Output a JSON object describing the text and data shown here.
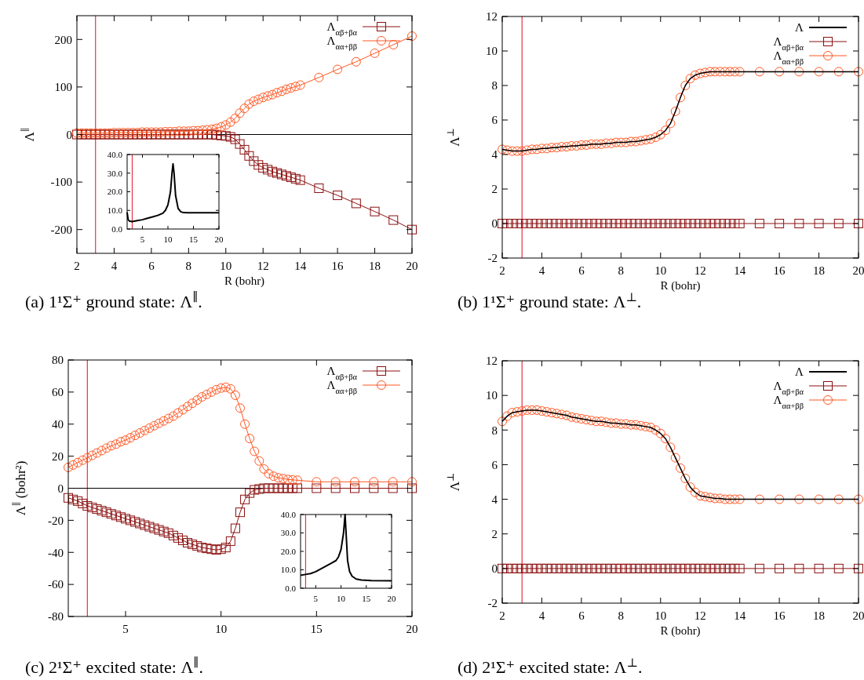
{
  "chart_data": [
    {
      "type": "line",
      "title": "(a) 1¹Σ⁺ ground state: Λ$^{∥}$.",
      "xlabel": "R (bohr)",
      "ylabel": "Λ$^{∥}$",
      "xlim": [
        2,
        20
      ],
      "xticks": [
        2,
        4,
        6,
        8,
        10,
        12,
        14,
        16,
        18,
        20
      ],
      "ylim": [
        -250,
        250
      ],
      "yticks": [
        -200,
        -100,
        0,
        100,
        200
      ],
      "legend": "top right",
      "grid": false,
      "ref_lines": [
        {
          "axis": "x",
          "value": 3,
          "color": "#e8304a"
        },
        {
          "axis": "y",
          "value": 0,
          "color": "#000000"
        }
      ],
      "x": [
        2,
        2.25,
        2.5,
        2.75,
        3,
        3.25,
        3.5,
        3.75,
        4,
        4.25,
        4.5,
        4.75,
        5,
        5.25,
        5.5,
        5.75,
        6,
        6.25,
        6.5,
        6.75,
        7,
        7.25,
        7.5,
        7.75,
        8,
        8.25,
        8.5,
        8.75,
        9,
        9.25,
        9.5,
        9.75,
        10,
        10.25,
        10.5,
        10.75,
        11,
        11.25,
        11.5,
        11.75,
        12,
        12.25,
        12.5,
        12.75,
        13,
        13.25,
        13.5,
        13.75,
        14,
        15,
        16,
        17,
        18,
        19,
        20
      ],
      "series": [
        {
          "name": "Λ$_{αβ+βα}$",
          "color": "#8b1010",
          "marker": "square",
          "values": [
            0,
            0,
            0,
            0,
            0,
            0,
            0,
            0,
            0,
            0,
            0,
            0,
            0,
            0,
            0,
            0,
            0,
            0,
            0,
            0,
            0,
            0,
            0,
            0,
            0,
            0,
            0,
            0,
            0,
            0,
            -1,
            -2,
            -3,
            -5,
            -10,
            -20,
            -32,
            -45,
            -56,
            -64,
            -70,
            -74,
            -78,
            -81,
            -84,
            -87,
            -90,
            -93,
            -96,
            -113,
            -128,
            -145,
            -162,
            -180,
            -200
          ]
        },
        {
          "name": "Λ$_{αα+ββ}$",
          "color": "#ff5722",
          "marker": "circle",
          "values": [
            3,
            3,
            3,
            3,
            3,
            3,
            3,
            3,
            4,
            4,
            4,
            4,
            4,
            4,
            5,
            5,
            5,
            5,
            5,
            6,
            6,
            6,
            7,
            7,
            7,
            8,
            8,
            9,
            10,
            11,
            13,
            16,
            20,
            26,
            34,
            45,
            55,
            64,
            70,
            74,
            78,
            81,
            84,
            88,
            91,
            95,
            98,
            101,
            104,
            120,
            137,
            153,
            171,
            189,
            207
          ]
        }
      ]
    },
    {
      "type": "line",
      "xlim": [
        2,
        20
      ],
      "xticks": [
        5,
        10,
        15,
        20
      ],
      "ylim": [
        0,
        40
      ],
      "yticks": [
        {
          "value": 0,
          "label": "0.0"
        },
        {
          "value": 10,
          "label": "10.0"
        },
        {
          "value": 20,
          "label": "20.0"
        },
        {
          "value": 30,
          "label": "30.0"
        },
        {
          "value": 40,
          "label": "40.0"
        }
      ],
      "ref_lines": [
        {
          "axis": "x",
          "value": 3,
          "color": "#e8304a"
        }
      ],
      "series": [
        {
          "color": "#000000",
          "marker": "none",
          "x": [
            2,
            2.2,
            2.5,
            3,
            4,
            5,
            6,
            7,
            8,
            9,
            9.5,
            10,
            10.5,
            10.8,
            11,
            11.2,
            11.5,
            12,
            12.5,
            13,
            14,
            16,
            18,
            20
          ],
          "values": [
            9,
            5,
            4.2,
            4,
            4.5,
            5,
            5.8,
            6.5,
            7.3,
            8.5,
            10,
            13,
            20,
            30,
            35,
            30,
            18,
            11,
            9.3,
            8.8,
            8.7,
            8.7,
            8.7,
            8.7
          ]
        }
      ]
    },
    {
      "type": "line",
      "title": "(b) 1¹Σ⁺ ground state: Λ$^{⊥}$.",
      "xlabel": "R (bohr)",
      "ylabel": "Λ$^{⊥}$",
      "xlim": [
        2,
        20
      ],
      "xticks": [
        2,
        4,
        6,
        8,
        10,
        12,
        14,
        16,
        18,
        20
      ],
      "ylim": [
        -2,
        12
      ],
      "yticks": [
        -2,
        0,
        2,
        4,
        6,
        8,
        10,
        12
      ],
      "legend": "top right",
      "grid": false,
      "ref_lines": [
        {
          "axis": "x",
          "value": 3,
          "color": "#e8304a"
        }
      ],
      "x": [
        2,
        2.25,
        2.5,
        2.75,
        3,
        3.25,
        3.5,
        3.75,
        4,
        4.25,
        4.5,
        4.75,
        5,
        5.25,
        5.5,
        5.75,
        6,
        6.25,
        6.5,
        6.75,
        7,
        7.25,
        7.5,
        7.75,
        8,
        8.25,
        8.5,
        8.75,
        9,
        9.25,
        9.5,
        9.75,
        10,
        10.25,
        10.5,
        10.75,
        11,
        11.25,
        11.5,
        11.75,
        12,
        12.25,
        12.5,
        12.75,
        13,
        13.25,
        13.5,
        13.75,
        14,
        15,
        16,
        17,
        18,
        19,
        20
      ],
      "series": [
        {
          "name": "Λ",
          "color": "#000000",
          "marker": "none",
          "values": [
            4.3,
            4.25,
            4.2,
            4.2,
            4.2,
            4.25,
            4.3,
            4.3,
            4.35,
            4.35,
            4.4,
            4.4,
            4.45,
            4.45,
            4.5,
            4.5,
            4.55,
            4.55,
            4.6,
            4.6,
            4.6,
            4.65,
            4.65,
            4.7,
            4.7,
            4.7,
            4.75,
            4.75,
            4.8,
            4.85,
            4.9,
            5.0,
            5.15,
            5.4,
            5.8,
            6.5,
            7.3,
            8.0,
            8.4,
            8.6,
            8.7,
            8.75,
            8.8,
            8.8,
            8.8,
            8.8,
            8.8,
            8.8,
            8.8,
            8.8,
            8.8,
            8.8,
            8.8,
            8.8,
            8.8
          ]
        },
        {
          "name": "Λ$_{αβ+βα}$",
          "color": "#8b1010",
          "marker": "square",
          "values": [
            0,
            0,
            0,
            0,
            0,
            0,
            0,
            0,
            0,
            0,
            0,
            0,
            0,
            0,
            0,
            0,
            0,
            0,
            0,
            0,
            0,
            0,
            0,
            0,
            0,
            0,
            0,
            0,
            0,
            0,
            0,
            0,
            0,
            0,
            0,
            0,
            0,
            0,
            0,
            0,
            0,
            0,
            0,
            0,
            0,
            0,
            0,
            0,
            0,
            0,
            0,
            0,
            0,
            0,
            0
          ]
        },
        {
          "name": "Λ$_{αα+ββ}$",
          "color": "#ff5722",
          "marker": "circle",
          "values": [
            4.3,
            4.25,
            4.2,
            4.2,
            4.2,
            4.25,
            4.3,
            4.3,
            4.35,
            4.35,
            4.4,
            4.4,
            4.45,
            4.45,
            4.5,
            4.5,
            4.55,
            4.55,
            4.6,
            4.6,
            4.6,
            4.65,
            4.65,
            4.7,
            4.7,
            4.7,
            4.75,
            4.75,
            4.8,
            4.85,
            4.9,
            5.0,
            5.15,
            5.4,
            5.8,
            6.5,
            7.3,
            8.0,
            8.4,
            8.6,
            8.7,
            8.75,
            8.8,
            8.8,
            8.8,
            8.8,
            8.8,
            8.8,
            8.8,
            8.8,
            8.8,
            8.8,
            8.8,
            8.8,
            8.8
          ]
        }
      ]
    },
    {
      "type": "line",
      "title": "(c) 2¹Σ⁺ excited state: Λ$^{∥}$.",
      "ylabel": "Λ$^{∥}$ (bohr²)",
      "xlim": [
        2,
        20
      ],
      "xticks": [
        5,
        10,
        15,
        20
      ],
      "ylim": [
        -80,
        80
      ],
      "yticks": [
        -80,
        -60,
        -40,
        -20,
        0,
        20,
        40,
        60,
        80
      ],
      "legend": "top right",
      "grid": false,
      "ref_lines": [
        {
          "axis": "x",
          "value": 3,
          "color": "#e8304a"
        },
        {
          "axis": "y",
          "value": 0,
          "color": "#000000"
        }
      ],
      "x": [
        2,
        2.25,
        2.5,
        2.75,
        3,
        3.25,
        3.5,
        3.75,
        4,
        4.25,
        4.5,
        4.75,
        5,
        5.25,
        5.5,
        5.75,
        6,
        6.25,
        6.5,
        6.75,
        7,
        7.25,
        7.5,
        7.75,
        8,
        8.25,
        8.5,
        8.75,
        9,
        9.25,
        9.5,
        9.75,
        10,
        10.25,
        10.5,
        10.75,
        11,
        11.25,
        11.5,
        11.75,
        12,
        12.25,
        12.5,
        12.75,
        13,
        13.25,
        13.5,
        13.75,
        14,
        15,
        16,
        17,
        18,
        19,
        20
      ],
      "series": [
        {
          "name": "Λ$_{αβ+βα}$",
          "color": "#8b1010",
          "marker": "square",
          "values": [
            -6,
            -7,
            -8,
            -9.5,
            -11,
            -12,
            -13,
            -14,
            -15,
            -16,
            -17,
            -18,
            -19,
            -20,
            -21,
            -22,
            -23,
            -24,
            -25,
            -26,
            -27,
            -28,
            -29.5,
            -31,
            -32.5,
            -34,
            -35,
            -36,
            -37,
            -37.5,
            -38,
            -38.5,
            -38,
            -37,
            -33,
            -25,
            -15,
            -7,
            -3,
            -1,
            -0.5,
            0,
            0,
            0,
            0,
            0,
            0,
            0,
            0,
            0,
            0,
            0,
            0,
            0,
            0
          ]
        },
        {
          "name": "Λ$_{αα+ββ}$",
          "color": "#ff5722",
          "marker": "circle",
          "values": [
            13,
            14.5,
            16,
            17.5,
            19,
            20.5,
            22,
            23.5,
            25,
            26.5,
            27.5,
            29,
            30,
            31.5,
            33,
            34.5,
            36,
            37.5,
            39,
            40.5,
            42,
            43.5,
            45,
            47,
            49,
            51,
            53,
            55,
            57,
            58.5,
            60,
            61.5,
            62.5,
            63,
            62,
            58,
            50,
            40,
            31,
            23,
            17,
            12,
            9,
            7.5,
            6.5,
            6,
            5.5,
            5.2,
            5,
            4,
            4,
            4,
            4,
            4,
            4
          ]
        }
      ]
    },
    {
      "type": "line",
      "xlim": [
        2,
        20
      ],
      "xticks": [
        5,
        10,
        15,
        20
      ],
      "ylim": [
        0,
        40
      ],
      "yticks": [
        {
          "value": 0,
          "label": "0.0"
        },
        {
          "value": 10,
          "label": "10.0"
        },
        {
          "value": 20,
          "label": "20.0"
        },
        {
          "value": 30,
          "label": "30.0"
        },
        {
          "value": 40,
          "label": "40.0"
        }
      ],
      "ref_lines": [
        {
          "axis": "x",
          "value": 3,
          "color": "#e8304a"
        }
      ],
      "series": [
        {
          "color": "#000000",
          "marker": "none",
          "x": [
            2,
            3,
            4,
            5,
            6,
            7,
            8,
            9,
            9.5,
            10,
            10.5,
            10.8,
            11,
            11.3,
            11.7,
            12.2,
            13,
            14,
            16,
            20
          ],
          "values": [
            7,
            7.5,
            8,
            9,
            10.5,
            12,
            13.5,
            15,
            17,
            21,
            30,
            40,
            30,
            15,
            9,
            6.5,
            5,
            4.5,
            4.2,
            4
          ]
        }
      ]
    },
    {
      "type": "line",
      "title": "(d) 2¹Σ⁺ excited state: Λ$^{⊥}$.",
      "xlabel": "R (bohr)",
      "ylabel": "Λ$^{⊥}$",
      "xlim": [
        2,
        20
      ],
      "xticks": [
        2,
        4,
        6,
        8,
        10,
        12,
        14,
        16,
        18,
        20
      ],
      "ylim": [
        -2,
        12
      ],
      "yticks": [
        -2,
        0,
        2,
        4,
        6,
        8,
        10,
        12
      ],
      "legend": "top right",
      "grid": false,
      "ref_lines": [
        {
          "axis": "x",
          "value": 3,
          "color": "#e8304a"
        }
      ],
      "x": [
        2,
        2.25,
        2.5,
        2.75,
        3,
        3.25,
        3.5,
        3.75,
        4,
        4.25,
        4.5,
        4.75,
        5,
        5.25,
        5.5,
        5.75,
        6,
        6.25,
        6.5,
        6.75,
        7,
        7.25,
        7.5,
        7.75,
        8,
        8.25,
        8.5,
        8.75,
        9,
        9.25,
        9.5,
        9.75,
        10,
        10.25,
        10.5,
        10.75,
        11,
        11.25,
        11.5,
        11.75,
        12,
        12.25,
        12.5,
        12.75,
        13,
        13.25,
        13.5,
        13.75,
        14,
        15,
        16,
        17,
        18,
        19,
        20
      ],
      "series": [
        {
          "name": "Λ",
          "color": "#000000",
          "marker": "none",
          "values": [
            8.5,
            8.8,
            9.0,
            9.05,
            9.1,
            9.15,
            9.15,
            9.15,
            9.1,
            9.05,
            9.0,
            8.95,
            8.9,
            8.85,
            8.75,
            8.7,
            8.65,
            8.6,
            8.55,
            8.5,
            8.5,
            8.45,
            8.4,
            8.4,
            8.35,
            8.35,
            8.3,
            8.3,
            8.25,
            8.2,
            8.15,
            8.0,
            7.8,
            7.5,
            7.0,
            6.4,
            5.8,
            5.2,
            4.7,
            4.4,
            4.2,
            4.15,
            4.1,
            4.05,
            4.05,
            4.0,
            4.0,
            4.0,
            4.0,
            4,
            4,
            4,
            4,
            4,
            4
          ]
        },
        {
          "name": "Λ$_{αβ+βα}$",
          "color": "#8b1010",
          "marker": "square",
          "values": [
            0,
            0,
            0,
            0,
            0,
            0,
            0,
            0,
            0,
            0,
            0,
            0,
            0,
            0,
            0,
            0,
            0,
            0,
            0,
            0,
            0,
            0,
            0,
            0,
            0,
            0,
            0,
            0,
            0,
            0,
            0,
            0,
            0,
            0,
            0,
            0,
            0,
            0,
            0,
            0,
            0,
            0,
            0,
            0,
            0,
            0,
            0,
            0,
            0,
            0,
            0,
            0,
            0,
            0,
            0
          ]
        },
        {
          "name": "Λ$_{αα+ββ}$",
          "color": "#ff5722",
          "marker": "circle",
          "values": [
            8.5,
            8.8,
            9.0,
            9.05,
            9.1,
            9.15,
            9.15,
            9.15,
            9.1,
            9.05,
            9.0,
            8.95,
            8.9,
            8.85,
            8.75,
            8.7,
            8.65,
            8.6,
            8.55,
            8.5,
            8.5,
            8.45,
            8.4,
            8.4,
            8.35,
            8.35,
            8.3,
            8.3,
            8.25,
            8.2,
            8.15,
            8.0,
            7.8,
            7.5,
            7.0,
            6.4,
            5.8,
            5.2,
            4.7,
            4.4,
            4.2,
            4.15,
            4.1,
            4.05,
            4.05,
            4.0,
            4.0,
            4.0,
            4.0,
            4,
            4,
            4,
            4,
            4,
            4
          ]
        }
      ]
    }
  ]
}
